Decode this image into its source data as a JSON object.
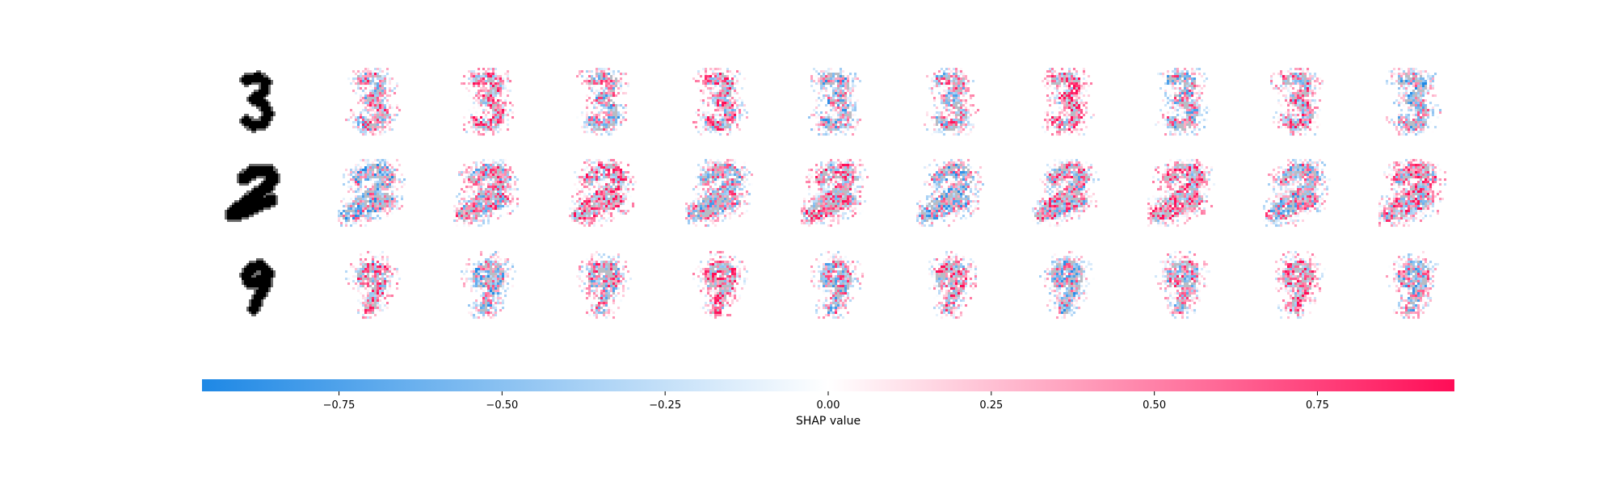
{
  "chart_data": {
    "type": "heatmap",
    "title": "",
    "rows": [
      {
        "input_digit": "3"
      },
      {
        "input_digit": "2"
      },
      {
        "input_digit": "9"
      }
    ],
    "explanation_columns": 10,
    "colorbar": {
      "label": "SHAP value",
      "ticks": [
        -0.75,
        -0.5,
        -0.25,
        0.0,
        0.25,
        0.5,
        0.75
      ],
      "tick_labels": [
        "−0.75",
        "−0.50",
        "−0.25",
        "0.00",
        "0.25",
        "0.50",
        "0.75"
      ],
      "range": [
        -0.96,
        0.96
      ],
      "negative_color": "#1E88E5",
      "positive_color": "#FF0D57",
      "mid_color": "#FFFFFF"
    },
    "overlay_color": "#B8BCC4"
  }
}
